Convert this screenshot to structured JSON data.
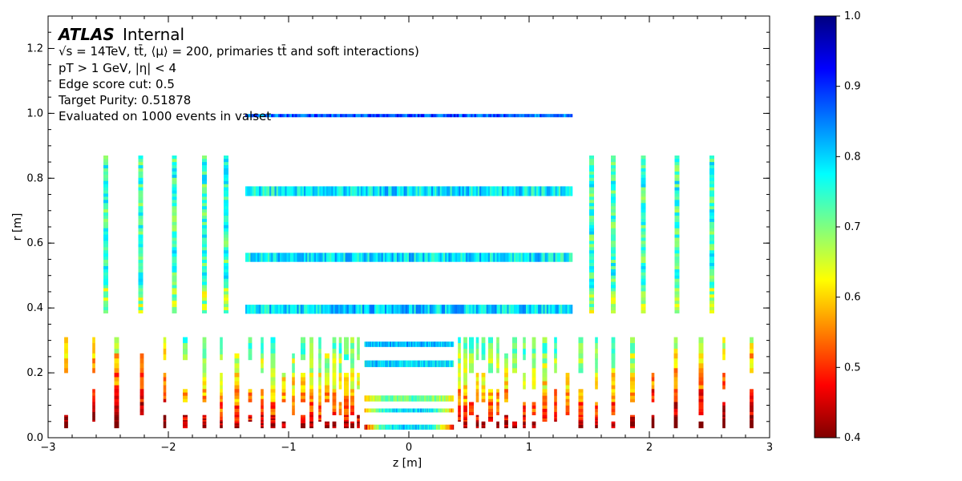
{
  "chart_data": {
    "type": "heatmap",
    "xlabel": "z [m]",
    "ylabel": "r [m]",
    "xlim": [
      -3,
      3
    ],
    "ylim": [
      0,
      1.3
    ],
    "x_ticks": [
      "−3",
      "−2",
      "−1",
      "0",
      "1",
      "2",
      "3"
    ],
    "y_ticks": [
      "0.0",
      "0.2",
      "0.4",
      "0.6",
      "0.8",
      "1.0",
      "1.2"
    ],
    "grid": false,
    "colorbar": {
      "range": [
        0.4,
        1.0
      ],
      "colormap": "jet",
      "ticks": [
        "0.4",
        "0.5",
        "0.6",
        "0.7",
        "0.8",
        "0.9",
        "1.0"
      ]
    },
    "annotation": {
      "experiment": "ATLAS",
      "status": "Internal",
      "line1": "√s = 14TeV, tt̄, ⟨μ⟩ = 200, primaries tt̄ and soft interactions)",
      "line2": "pT > 1 GeV, |η| < 4",
      "line3": "Edge score cut: 0.5",
      "line4": "Target Purity:  0.51878",
      "line5": "Evaluated on 1000 events in valset"
    },
    "barrel_layers": [
      {
        "r": [
          0.025,
          0.04
        ],
        "z": [
          -0.37,
          0.37
        ],
        "purity_center": 0.8,
        "purity_edge": 0.45
      },
      {
        "r": [
          0.078,
          0.09
        ],
        "z": [
          -0.37,
          0.37
        ],
        "purity_center": 0.8,
        "purity_edge": 0.55
      },
      {
        "r": [
          0.112,
          0.13
        ],
        "z": [
          -0.37,
          0.37
        ],
        "purity_center": 0.72,
        "purity_edge": 0.6
      },
      {
        "r": [
          0.218,
          0.238
        ],
        "z": [
          -0.37,
          0.37
        ],
        "purity_center": 0.8,
        "purity_edge": 0.78
      },
      {
        "r": [
          0.28,
          0.296
        ],
        "z": [
          -0.37,
          0.37
        ],
        "purity_center": 0.82,
        "purity_edge": 0.8
      },
      {
        "r": [
          0.382,
          0.41
        ],
        "z": [
          -1.36,
          1.36
        ],
        "purity_center": 0.8,
        "purity_edge": 0.78
      },
      {
        "r": [
          0.542,
          0.57
        ],
        "z": [
          -1.36,
          1.36
        ],
        "purity_center": 0.79,
        "purity_edge": 0.78
      },
      {
        "r": [
          0.745,
          0.775
        ],
        "z": [
          -1.36,
          1.36
        ],
        "purity_center": 0.79,
        "purity_edge": 0.77
      },
      {
        "r": [
          0.988,
          0.998
        ],
        "z": [
          -1.36,
          1.36
        ],
        "purity_center": 0.88,
        "purity_edge": 0.85
      }
    ],
    "strip_endcaps": [
      {
        "z": 1.52,
        "r": [
          0.384,
          0.87
        ]
      },
      {
        "z": 1.7,
        "r": [
          0.384,
          0.87
        ]
      },
      {
        "z": 1.95,
        "r": [
          0.384,
          0.87
        ]
      },
      {
        "z": 2.23,
        "r": [
          0.384,
          0.87
        ]
      },
      {
        "z": 2.52,
        "r": [
          0.384,
          0.87
        ]
      }
    ],
    "pixel_endcap_z": [
      0.42,
      0.47,
      0.52,
      0.57,
      0.62,
      0.68,
      0.74,
      0.81,
      0.88,
      0.96,
      1.04,
      1.13,
      1.22,
      1.32,
      1.43,
      1.56,
      1.7,
      1.86,
      2.03,
      2.22,
      2.43,
      2.62,
      2.85
    ]
  }
}
